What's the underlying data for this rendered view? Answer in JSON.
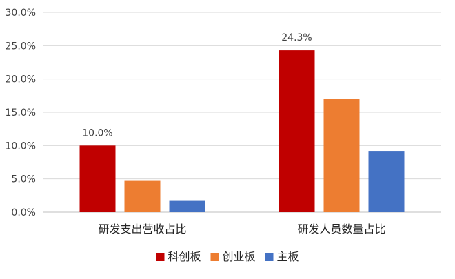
{
  "chart_data": {
    "type": "bar",
    "categories": [
      "研发支出营收占比",
      "研发人员数量占比"
    ],
    "series": [
      {
        "name": "科创板",
        "color": "#C00000",
        "values": [
          10.0,
          24.3
        ]
      },
      {
        "name": "创业板",
        "color": "#ED7D31",
        "values": [
          4.7,
          17.0
        ]
      },
      {
        "name": "主板",
        "color": "#4472C4",
        "values": [
          1.7,
          9.2
        ]
      }
    ],
    "data_labels": [
      {
        "series": 0,
        "category": 0,
        "text": "10.0%"
      },
      {
        "series": 0,
        "category": 1,
        "text": "24.3%"
      }
    ],
    "y_ticks": [
      "0.0%",
      "5.0%",
      "10.0%",
      "15.0%",
      "20.0%",
      "25.0%",
      "30.0%"
    ],
    "ylim": [
      0,
      30
    ],
    "y_unit": "%",
    "grid": true,
    "legend_position": "bottom",
    "title": "",
    "xlabel": "",
    "ylabel": ""
  }
}
